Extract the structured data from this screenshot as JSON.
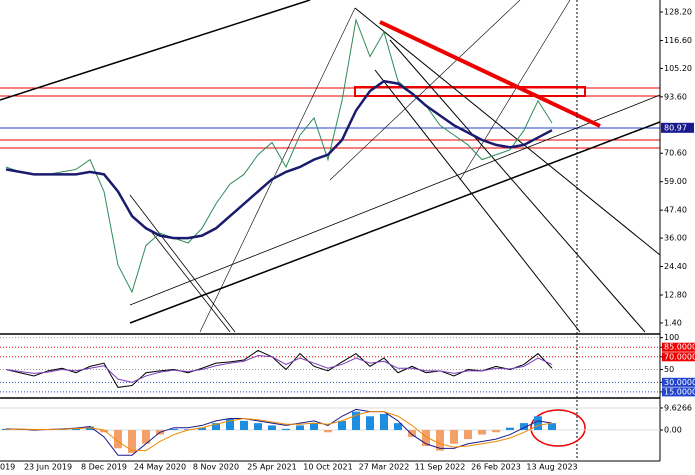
{
  "chart_data": [
    {
      "type": "line",
      "categories": [
        "019",
        null,
        null,
        "23 Jun 2019",
        null,
        null,
        null,
        "8 Dec 2019",
        null,
        null,
        null,
        "24 May 2020",
        null,
        null,
        null,
        "8 Nov 2020",
        null,
        null,
        null,
        "25 Apr 2021",
        null,
        null,
        null,
        "10 Oct 2021",
        null,
        null,
        null,
        "27 Mar 2022",
        null,
        null,
        null,
        "11 Sep 2022",
        null,
        null,
        null,
        "26 Feb 2023",
        null,
        null,
        null,
        "13 Aug 2023"
      ],
      "series": [
        {
          "color": "#2e8b57",
          "values": [
            65,
            63,
            62,
            62,
            63,
            64,
            68,
            55,
            25,
            14,
            33,
            38,
            36,
            34,
            40,
            50,
            58,
            62,
            70,
            75,
            65,
            78,
            85,
            68,
            92,
            125,
            110,
            120,
            100,
            95,
            90,
            82,
            78,
            74,
            68,
            70,
            72,
            80,
            92,
            83
          ]
        },
        {
          "color": "#1a1a6e",
          "values": [
            64,
            63,
            62,
            62,
            62,
            62,
            63,
            62,
            55,
            45,
            40,
            37,
            36,
            36,
            37,
            40,
            45,
            50,
            55,
            60,
            63,
            65,
            68,
            70,
            76,
            88,
            96,
            100,
            99,
            95,
            90,
            86,
            82,
            79,
            76,
            74,
            73,
            74,
            77,
            80
          ]
        }
      ],
      "ylim": [
        -2.3,
        133.1
      ],
      "yticks": [
        {
          "value": 128.2,
          "label": "128.20"
        },
        {
          "value": 116.6,
          "label": "116.60"
        },
        {
          "value": 105.2,
          "label": "105.20"
        },
        {
          "value": 93.6,
          "label": "93.60"
        },
        {
          "value": 70.6,
          "label": "70.60"
        },
        {
          "value": 59,
          "label": "59.00"
        },
        {
          "value": 47.4,
          "label": "47.40"
        },
        {
          "value": 36,
          "label": "36.00"
        },
        {
          "value": 24.4,
          "label": "24.40"
        },
        {
          "value": 12.8,
          "label": "12.80"
        },
        {
          "value": 1.4,
          "label": "1.40"
        }
      ],
      "last_price": {
        "value": 80.97,
        "label": "80.97"
      }
    },
    {
      "type": "line",
      "series": [
        {
          "color": "#000000",
          "values": [
            50,
            45,
            40,
            48,
            52,
            45,
            55,
            60,
            22,
            25,
            45,
            48,
            50,
            45,
            52,
            60,
            62,
            65,
            80,
            70,
            50,
            75,
            55,
            48,
            62,
            75,
            55,
            68,
            45,
            55,
            45,
            48,
            40,
            50,
            48,
            55,
            50,
            58,
            75,
            52
          ]
        },
        {
          "color": "#7b3fbf",
          "values": [
            50,
            47,
            44,
            46,
            50,
            48,
            52,
            56,
            35,
            30,
            40,
            46,
            49,
            47,
            50,
            56,
            60,
            63,
            72,
            70,
            58,
            68,
            60,
            52,
            58,
            68,
            60,
            63,
            52,
            52,
            48,
            48,
            44,
            48,
            48,
            52,
            51,
            55,
            68,
            58
          ]
        }
      ],
      "ylim": [
        7,
        101
      ],
      "yticks": [
        100,
        {
          "value": 85,
          "label": "85.0000"
        },
        {
          "value": 70,
          "label": "70.0000"
        },
        50,
        {
          "value": 30,
          "label": "30.0000"
        },
        {
          "value": 15,
          "label": "15.0000"
        }
      ]
    },
    {
      "type": "bar",
      "color": "#1e8fe0",
      "negative_color": "#f4a06a",
      "values": [
        0.5,
        0.3,
        -0.3,
        0.2,
        0.5,
        0.6,
        1.5,
        -1,
        -8,
        -10,
        -6,
        -2,
        0.5,
        0.3,
        1,
        3,
        5,
        4,
        3,
        2,
        0.5,
        2,
        3,
        -1,
        4,
        8,
        6,
        7,
        3,
        -3,
        -7,
        -9,
        -6,
        -4,
        -2,
        -1,
        1,
        3,
        6,
        3
      ],
      "series": [
        {
          "color": "#1a1a8e",
          "values": [
            0.5,
            0.4,
            0,
            0.2,
            0.5,
            0.8,
            1.5,
            -3,
            -11,
            -11,
            -6,
            -1,
            1,
            1,
            2,
            4,
            5,
            5,
            4,
            3,
            2,
            3,
            4,
            2,
            6,
            9,
            8,
            8,
            4,
            -2,
            -6,
            -8,
            -8,
            -6,
            -5,
            -4,
            -2,
            1,
            4,
            3
          ]
        },
        {
          "color": "#f08a00",
          "values": [
            0.3,
            0.4,
            0.2,
            0.2,
            0.4,
            0.6,
            1,
            0,
            -5,
            -9,
            -9,
            -5,
            -2,
            0,
            1,
            2.5,
            4,
            5,
            4.5,
            3.5,
            2.5,
            2.5,
            3,
            2.5,
            4,
            6.5,
            8,
            8,
            6,
            2,
            -3,
            -6,
            -7.5,
            -7,
            -6,
            -5,
            -3.5,
            -1,
            2,
            3
          ]
        }
      ],
      "ylim": [
        -13.1,
        13.1
      ],
      "yticks": [
        9.6266,
        {
          "value": 0,
          "label": "0.00"
        }
      ]
    }
  ]
}
